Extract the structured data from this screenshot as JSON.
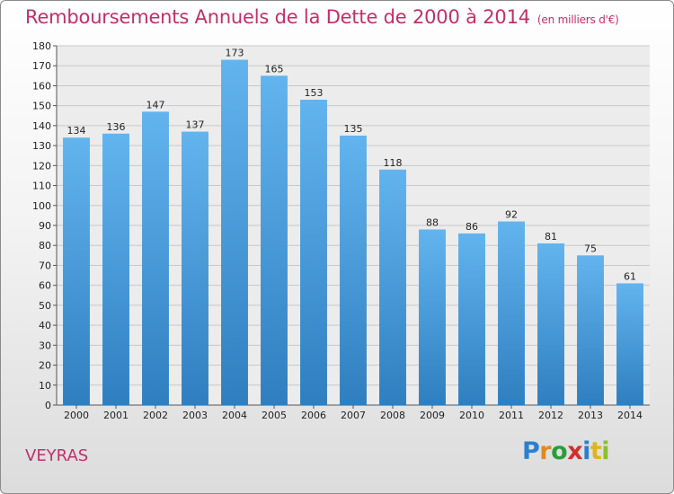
{
  "title": "Remboursements Annuels de la Dette de 2000 à 2014",
  "subtitle": "(en milliers d'€)",
  "commune": "VEYRAS",
  "logo": {
    "letters": [
      {
        "ch": "P",
        "color": "#2a7fd0"
      },
      {
        "ch": "r",
        "color": "#e08a1e"
      },
      {
        "ch": "o",
        "color": "#2a9d3a"
      },
      {
        "ch": "x",
        "color": "#d0302a"
      },
      {
        "ch": "i",
        "color": "#2a7fd0"
      },
      {
        "ch": "t",
        "color": "#e0b41e"
      },
      {
        "ch": "i",
        "color": "#8ac02a"
      }
    ]
  },
  "colors": {
    "accent": "#c0306a",
    "bar_top": "#62b4ee",
    "bar_bottom": "#2f7fc0",
    "grid": "#c8c8c8"
  },
  "chart_data": {
    "type": "bar",
    "title": "Remboursements Annuels de la Dette de 2000 à 2014",
    "xlabel": "",
    "ylabel": "",
    "categories": [
      "2000",
      "2001",
      "2002",
      "2003",
      "2004",
      "2005",
      "2006",
      "2007",
      "2008",
      "2009",
      "2010",
      "2011",
      "2012",
      "2013",
      "2014"
    ],
    "values": [
      134,
      136,
      147,
      137,
      173,
      165,
      153,
      135,
      118,
      88,
      86,
      92,
      81,
      75,
      61
    ],
    "ylim": [
      0,
      180
    ],
    "yticks": [
      0,
      10,
      20,
      30,
      40,
      50,
      60,
      70,
      80,
      90,
      100,
      110,
      120,
      130,
      140,
      150,
      160,
      170,
      180
    ],
    "grid": true
  }
}
